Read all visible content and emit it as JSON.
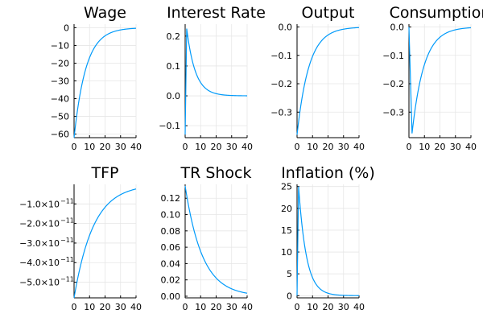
{
  "colors": {
    "series": "#009AFA",
    "grid": "#E6E6E6",
    "axis": "#000000"
  },
  "chart_data": [
    {
      "type": "line",
      "title": "Wage",
      "xlim": [
        0,
        40
      ],
      "ylim": [
        -62,
        2
      ],
      "xticks": [
        0,
        10,
        20,
        30,
        40
      ],
      "xtick_labels": [
        "0",
        "10",
        "20",
        "30",
        "40"
      ],
      "yticks": [
        -60,
        -50,
        -40,
        -30,
        -20,
        -10,
        0
      ],
      "ytick_labels": [
        "−60",
        "−50",
        "−40",
        "−30",
        "−20",
        "−10",
        "0"
      ],
      "curve": {
        "kind": "decay",
        "start": -62,
        "rate": 0.13
      },
      "grid": true,
      "legend": "none"
    },
    {
      "type": "line",
      "title": "Interest Rate",
      "xlim": [
        0,
        40
      ],
      "ylim": [
        -0.14,
        0.24
      ],
      "xticks": [
        0,
        10,
        20,
        30,
        40
      ],
      "xtick_labels": [
        "0",
        "10",
        "20",
        "30",
        "40"
      ],
      "yticks": [
        -0.1,
        0,
        0.1,
        0.2
      ],
      "ytick_labels": [
        "−0.1",
        "0.0",
        "0.1",
        "0.2"
      ],
      "curve": {
        "kind": "spike",
        "start": -0.13,
        "peak_x": 1,
        "peak": 0.225,
        "rate": 0.18
      },
      "grid": true,
      "legend": "none"
    },
    {
      "type": "line",
      "title": "Output",
      "xlim": [
        0,
        40
      ],
      "ylim": [
        -0.39,
        0.01
      ],
      "xticks": [
        0,
        10,
        20,
        30,
        40
      ],
      "xtick_labels": [
        "0",
        "10",
        "20",
        "30",
        "40"
      ],
      "yticks": [
        -0.3,
        -0.2,
        -0.1,
        0
      ],
      "ytick_labels": [
        "−0.3",
        "−0.2",
        "−0.1",
        "0.0"
      ],
      "curve": {
        "kind": "decay",
        "start": -0.38,
        "rate": 0.13
      },
      "grid": true,
      "legend": "none"
    },
    {
      "type": "line",
      "title": "Consumption",
      "xlim": [
        0,
        40
      ],
      "ylim": [
        -0.39,
        0.01
      ],
      "xticks": [
        0,
        10,
        20,
        30,
        40
      ],
      "xtick_labels": [
        "0",
        "10",
        "20",
        "30",
        "40"
      ],
      "yticks": [
        -0.3,
        -0.2,
        -0.1,
        0
      ],
      "ytick_labels": [
        "−0.3",
        "−0.2",
        "−0.1",
        "0.0"
      ],
      "curve": {
        "kind": "dip",
        "start": 0,
        "trough_x": 2,
        "trough": -0.375,
        "rate": 0.13
      },
      "grid": true,
      "legend": "none"
    },
    {
      "type": "line",
      "title": "TFP",
      "xlim": [
        0,
        40
      ],
      "ylim": [
        -5.8e-11,
        0
      ],
      "xticks": [
        0,
        10,
        20,
        30,
        40
      ],
      "xtick_labels": [
        "0",
        "10",
        "20",
        "30",
        "40"
      ],
      "yticks": [
        -5e-11,
        -4e-11,
        -3e-11,
        -2e-11,
        -1e-11
      ],
      "ytick_labels": [
        "−5.0×10",
        "−4.0×10",
        "−3.0×10",
        "−2.0×10",
        "−1.0×10"
      ],
      "ytick_exponent": "−11",
      "curve": {
        "kind": "decay",
        "start": -5.8e-11,
        "rate": 0.08
      },
      "grid": true,
      "legend": "none"
    },
    {
      "type": "line",
      "title": "TR Shock",
      "xlim": [
        0,
        40
      ],
      "ylim": [
        -0.002,
        0.137
      ],
      "xticks": [
        0,
        10,
        20,
        30,
        40
      ],
      "xtick_labels": [
        "0",
        "10",
        "20",
        "30",
        "40"
      ],
      "yticks": [
        0,
        0.02,
        0.04,
        0.06,
        0.08,
        0.1,
        0.12
      ],
      "ytick_labels": [
        "0.00",
        "0.02",
        "0.04",
        "0.06",
        "0.08",
        "0.10",
        "0.12"
      ],
      "curve": {
        "kind": "decay",
        "start": 0.135,
        "rate": 0.09
      },
      "grid": true,
      "legend": "none"
    },
    {
      "type": "line",
      "title": "Inflation (%)",
      "xlim": [
        0,
        40
      ],
      "ylim": [
        -0.5,
        25.5
      ],
      "xticks": [
        0,
        10,
        20,
        30,
        40
      ],
      "xtick_labels": [
        "0",
        "10",
        "20",
        "30",
        "40"
      ],
      "yticks": [
        0,
        5,
        10,
        15,
        20,
        25
      ],
      "ytick_labels": [
        "0",
        "5",
        "10",
        "15",
        "20",
        "25"
      ],
      "curve": {
        "kind": "spike",
        "start": 0,
        "peak_x": 1,
        "peak": 25,
        "rate": 0.2
      },
      "grid": true,
      "legend": "none"
    }
  ]
}
